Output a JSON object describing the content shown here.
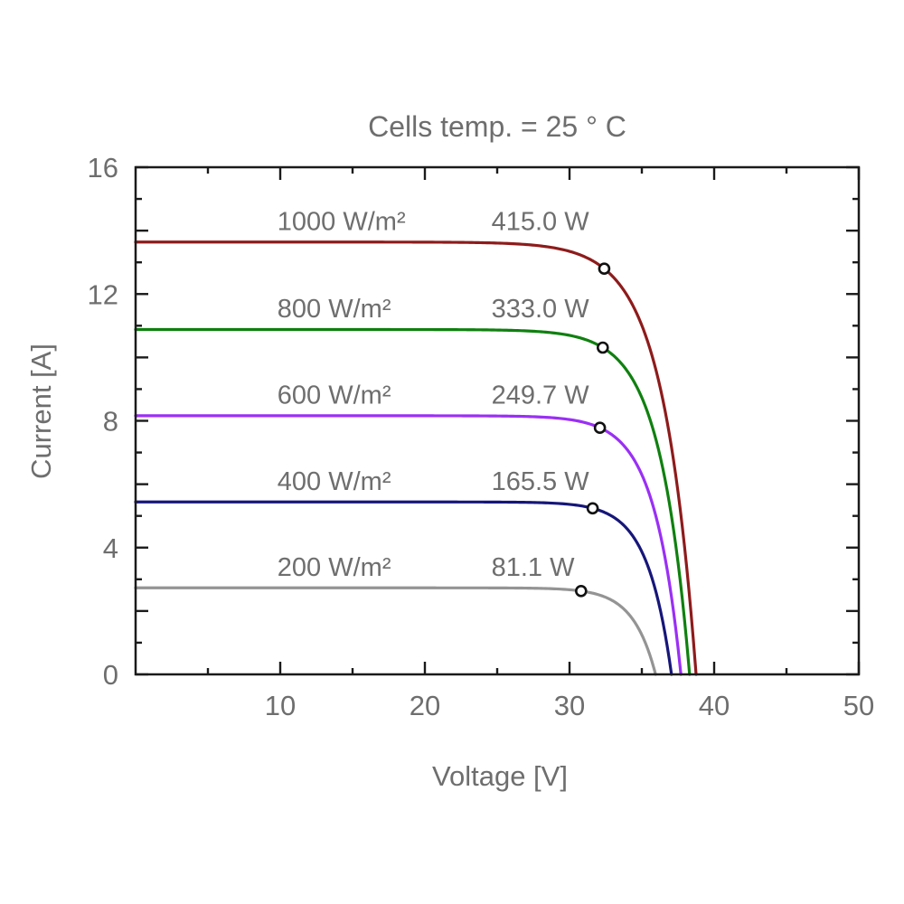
{
  "chart_data": {
    "type": "line",
    "title": "Cells temp. = 25 ° C",
    "xlabel": "Voltage [V]",
    "ylabel": "Current [A]",
    "xlim": [
      0,
      50
    ],
    "ylim": [
      0,
      16
    ],
    "grid": false,
    "legend": "inline annotations above each curve",
    "x_major_ticks": [
      10,
      20,
      30,
      40,
      50
    ],
    "x_minor_ticks": [
      5,
      15,
      25,
      35,
      45
    ],
    "x_tick_labels": [
      "10",
      "20",
      "30",
      "40",
      "50"
    ],
    "y_major_ticks": [
      0,
      2,
      4,
      6,
      8,
      10,
      12,
      14,
      16
    ],
    "y_minor_ticks": [
      1,
      3,
      5,
      7,
      9,
      11,
      13,
      15
    ],
    "y_labeled_ticks": [
      0,
      4,
      8,
      12,
      16
    ],
    "y_tick_labels": [
      "0",
      "4",
      "8",
      "12",
      "16"
    ],
    "series": [
      {
        "irradiance_label": "1000 W/m²",
        "irradiance_w_m2": 1000,
        "power_label": "415.0 W",
        "max_power_w": 415.0,
        "color": "#8e1b1b",
        "isc_a": 13.64,
        "voc_v": 38.75,
        "vmp_v": 32.4,
        "imp_a": 12.8
      },
      {
        "irradiance_label": "800 W/m²",
        "irradiance_w_m2": 800,
        "power_label": "333.0 W",
        "max_power_w": 333.0,
        "color": "#0f800f",
        "isc_a": 10.88,
        "voc_v": 38.3,
        "vmp_v": 32.3,
        "imp_a": 10.31
      },
      {
        "irradiance_label": "600 W/m²",
        "irradiance_w_m2": 600,
        "power_label": "249.7 W",
        "max_power_w": 249.7,
        "color": "#9a2ff5",
        "isc_a": 8.16,
        "voc_v": 37.7,
        "vmp_v": 32.1,
        "imp_a": 7.78
      },
      {
        "irradiance_label": "400 W/m²",
        "irradiance_w_m2": 400,
        "power_label": "165.5 W",
        "max_power_w": 165.5,
        "color": "#16167a",
        "isc_a": 5.44,
        "voc_v": 37.05,
        "vmp_v": 31.6,
        "imp_a": 5.24
      },
      {
        "irradiance_label": "200 W/m²",
        "irradiance_w_m2": 200,
        "power_label": "81.1 W",
        "max_power_w": 81.1,
        "color": "#949494",
        "isc_a": 2.73,
        "voc_v": 35.95,
        "vmp_v": 30.8,
        "imp_a": 2.63
      }
    ],
    "marker_style": {
      "shape": "open-circle",
      "fill": "#ffffff",
      "stroke": "#111111"
    },
    "annotation_layout": {
      "irradiance_anchor_v": 9.8,
      "power_anchor_v": 24.6,
      "offset_above_isc_a": 0.68
    }
  },
  "style": {
    "text_color": "#6e6e6e",
    "axis_color": "#1a1a1a",
    "background": "#ffffff"
  }
}
